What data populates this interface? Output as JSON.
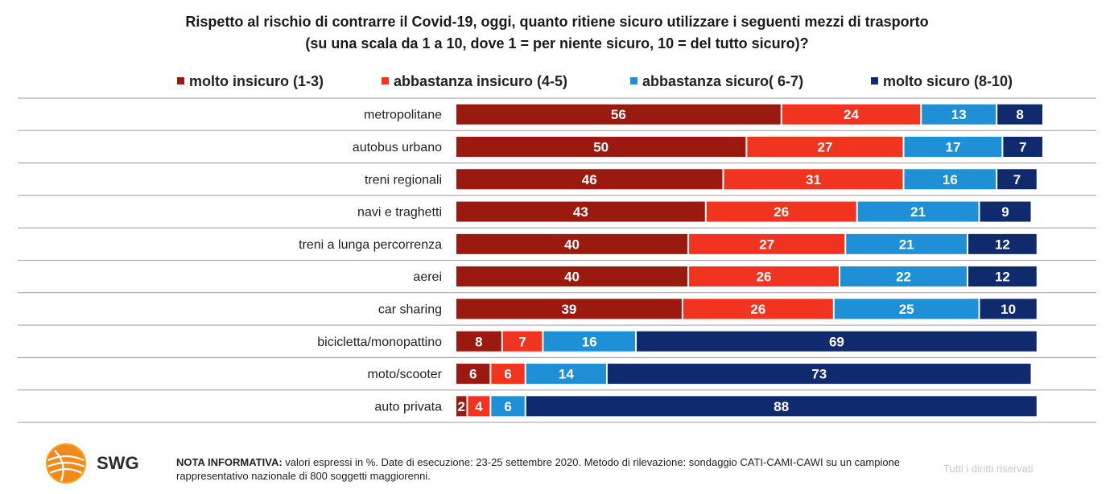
{
  "title_line1": "Rispetto al rischio di contrarre il Covid-19, oggi, quanto ritiene sicuro utilizzare i seguenti mezzi di trasporto",
  "title_line2": "(su una scala da 1 a 10, dove 1 = per niente sicuro, 10 = del tutto sicuro)?",
  "chart_data": {
    "type": "bar",
    "orientation": "horizontal",
    "stacked": true,
    "categories": [
      "metropolitane",
      "autobus urbano",
      "treni regionali",
      "navi e traghetti",
      "treni a lunga percorrenza",
      "aerei",
      "car sharing",
      "bicicletta/monopattino",
      "moto/scooter",
      "auto privata"
    ],
    "series": [
      {
        "name": "molto insicuro (1-3)",
        "color": "#9b1a10",
        "values": [
          56,
          50,
          46,
          43,
          40,
          40,
          39,
          8,
          6,
          2
        ]
      },
      {
        "name": "abbastanza insicuro (4-5)",
        "color": "#f0341f",
        "values": [
          24,
          27,
          31,
          26,
          27,
          26,
          26,
          7,
          6,
          4
        ]
      },
      {
        "name": "abbastanza sicuro( 6-7)",
        "color": "#1f8fd6",
        "values": [
          13,
          17,
          16,
          21,
          21,
          22,
          25,
          16,
          14,
          6
        ]
      },
      {
        "name": "molto sicuro (8-10)",
        "color": "#102a6e",
        "values": [
          8,
          7,
          7,
          9,
          12,
          12,
          10,
          69,
          73,
          88
        ]
      }
    ],
    "legend_position": "top",
    "grid": false
  },
  "footer": {
    "brand": "SWG",
    "note_label": "NOTA INFORMATIVA:",
    "note_text": " valori espressi in %. Date di esecuzione: 23-25 settembre 2020. Metodo di rilevazione: sondaggio CATI-CAMI-CAWI su un campione rappresentativo nazionale di 800 soggetti maggiorenni.",
    "rights": "Tutti i diritti riservati",
    "logo_colors": [
      "#f7a21b",
      "#f0641e"
    ]
  }
}
